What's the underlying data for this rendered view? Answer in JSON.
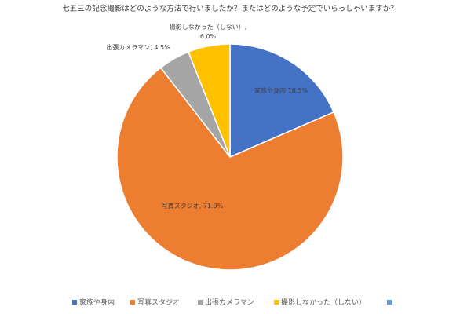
{
  "chart_data": {
    "type": "pie",
    "title": "七五三の記念撮影はどのような方法で行いましたか？またはどのような予定でいらっしゃいますか？",
    "slices": [
      {
        "label": "家族や身内",
        "value": 18.5,
        "display": "家族や身内 18.5%",
        "color": "#4472C4"
      },
      {
        "label": "写真スタジオ",
        "value": 71.0,
        "display": "写真スタジオ, 71.0%",
        "color": "#ED7D31"
      },
      {
        "label": "出張カメラマン",
        "value": 4.5,
        "display": "出張カメラマン, 4.5%",
        "color": "#A5A5A5"
      },
      {
        "label": "撮影しなかった（しない）",
        "value": 6.0,
        "display_lines": [
          "撮影しなかった（しない）,",
          "6.0%"
        ],
        "color": "#FFC000"
      }
    ],
    "legend": {
      "placement": "bottom",
      "items": [
        {
          "label": "家族や身内",
          "color": "#4472C4"
        },
        {
          "label": "写真スタジオ",
          "color": "#ED7D31"
        },
        {
          "label": "出張カメラマン",
          "color": "#A5A5A5"
        },
        {
          "label": "撮影しなかった（しない）",
          "color": "#FFC000"
        },
        {
          "label": "",
          "color": "#5B9BD5"
        }
      ]
    }
  }
}
